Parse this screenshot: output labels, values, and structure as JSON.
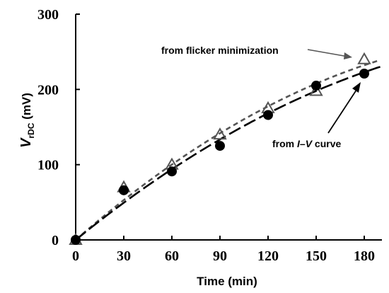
{
  "chart_data": {
    "type": "scatter",
    "xlabel": "Time (min)",
    "ylabel": {
      "main": "V",
      "subscript": "rDC",
      "unit": " (mV)"
    },
    "xlim": [
      0,
      180
    ],
    "ylim": [
      0,
      300
    ],
    "xticks": [
      0,
      30,
      60,
      90,
      120,
      150,
      180
    ],
    "yticks": [
      0,
      100,
      200,
      300
    ],
    "grid": false,
    "series": [
      {
        "name": "from flicker minimization",
        "marker": "open-triangle",
        "color": "#555555",
        "x": [
          0,
          30,
          60,
          90,
          120,
          150,
          180
        ],
        "y": [
          0,
          70,
          100,
          140,
          175,
          198,
          240
        ],
        "fit": {
          "style": "short-dash",
          "color": "#555555",
          "y_at_end": 245
        }
      },
      {
        "name": "from I–V curve",
        "name_parts": {
          "pre": "from ",
          "italic1": "I",
          "dash": "–",
          "italic2": "V",
          "post": " curve"
        },
        "marker": "filled-circle",
        "color": "#000000",
        "x": [
          0,
          30,
          60,
          90,
          120,
          150,
          180
        ],
        "y": [
          0,
          66,
          91,
          125,
          166,
          205,
          221
        ],
        "fit": {
          "style": "long-dash",
          "color": "#000000",
          "y_at_end": 232
        }
      }
    ]
  }
}
